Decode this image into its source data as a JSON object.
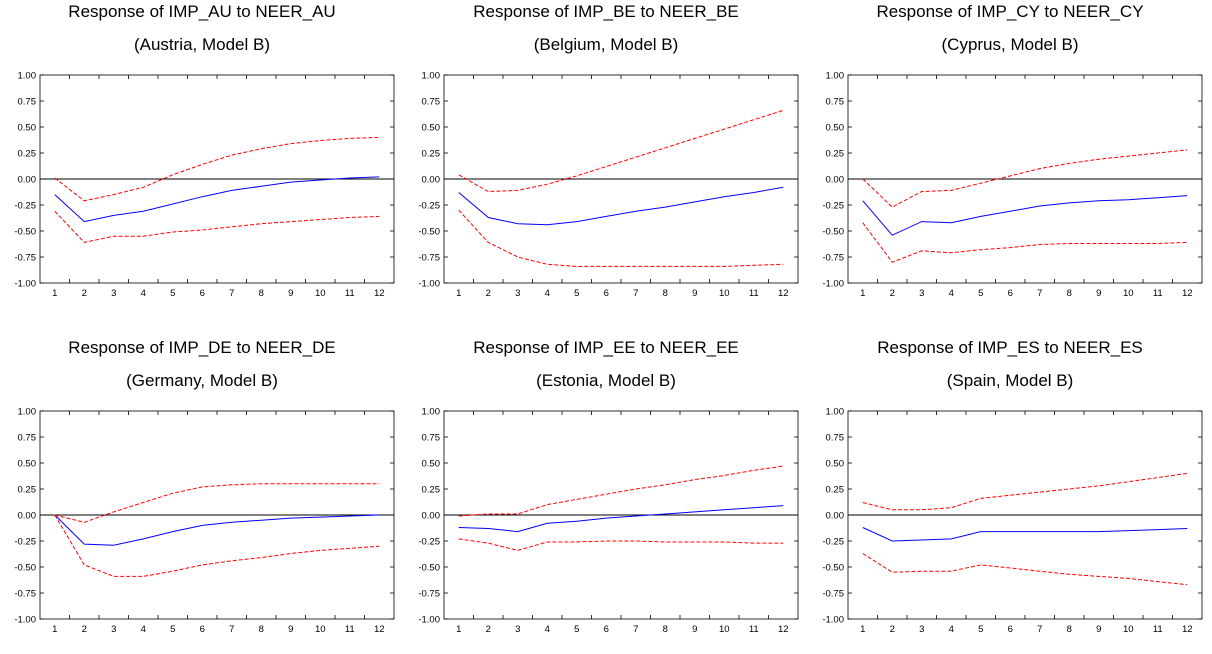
{
  "chart_data": [
    {
      "type": "line",
      "title": "Response of IMP_AU to NEER_AU",
      "subtitle": "(Austria, Model B)",
      "x": [
        1,
        2,
        3,
        4,
        5,
        6,
        7,
        8,
        9,
        10,
        11,
        12
      ],
      "ylim": [
        -1.0,
        1.0
      ],
      "yticks": [
        "1.00",
        "0.75",
        "0.50",
        "0.25",
        "0.00",
        "-0.25",
        "-0.50",
        "-0.75",
        "-1.00"
      ],
      "xticks": [
        "1",
        "2",
        "3",
        "4",
        "5",
        "6",
        "7",
        "8",
        "9",
        "10",
        "11",
        "12"
      ],
      "series": [
        {
          "role": "response",
          "color": "#0000ff",
          "dashed": false,
          "values": [
            -0.15,
            -0.41,
            -0.35,
            -0.31,
            -0.24,
            -0.17,
            -0.11,
            -0.07,
            -0.03,
            -0.01,
            0.01,
            0.02
          ]
        },
        {
          "role": "upper-band",
          "color": "#ff0000",
          "dashed": true,
          "values": [
            0.01,
            -0.21,
            -0.15,
            -0.08,
            0.04,
            0.14,
            0.23,
            0.29,
            0.34,
            0.37,
            0.39,
            0.4
          ]
        },
        {
          "role": "lower-band",
          "color": "#ff0000",
          "dashed": true,
          "values": [
            -0.31,
            -0.61,
            -0.55,
            -0.55,
            -0.51,
            -0.49,
            -0.46,
            -0.43,
            -0.41,
            -0.39,
            -0.37,
            -0.36
          ]
        }
      ]
    },
    {
      "type": "line",
      "title": "Response of IMP_BE to NEER_BE",
      "subtitle": "(Belgium, Model B)",
      "x": [
        1,
        2,
        3,
        4,
        5,
        6,
        7,
        8,
        9,
        10,
        11,
        12
      ],
      "ylim": [
        -1.0,
        1.0
      ],
      "yticks": [
        "1.00",
        "0.75",
        "0.50",
        "0.25",
        "0.00",
        "-0.25",
        "-0.50",
        "-0.75",
        "-1.00"
      ],
      "xticks": [
        "1",
        "2",
        "3",
        "4",
        "5",
        "6",
        "7",
        "8",
        "9",
        "10",
        "11",
        "12"
      ],
      "series": [
        {
          "role": "response",
          "color": "#0000ff",
          "dashed": false,
          "values": [
            -0.13,
            -0.37,
            -0.43,
            -0.44,
            -0.41,
            -0.36,
            -0.31,
            -0.27,
            -0.22,
            -0.17,
            -0.13,
            -0.08
          ]
        },
        {
          "role": "upper-band",
          "color": "#ff0000",
          "dashed": true,
          "values": [
            0.04,
            -0.12,
            -0.11,
            -0.05,
            0.03,
            0.12,
            0.21,
            0.3,
            0.39,
            0.48,
            0.57,
            0.66
          ]
        },
        {
          "role": "lower-band",
          "color": "#ff0000",
          "dashed": true,
          "values": [
            -0.3,
            -0.61,
            -0.75,
            -0.82,
            -0.84,
            -0.84,
            -0.84,
            -0.84,
            -0.84,
            -0.84,
            -0.83,
            -0.82
          ]
        }
      ]
    },
    {
      "type": "line",
      "title": "Response of IMP_CY to NEER_CY",
      "subtitle": "(Cyprus, Model B)",
      "x": [
        1,
        2,
        3,
        4,
        5,
        6,
        7,
        8,
        9,
        10,
        11,
        12
      ],
      "ylim": [
        -1.0,
        1.0
      ],
      "yticks": [
        "1.00",
        "0.75",
        "0.50",
        "0.25",
        "0.00",
        "-0.25",
        "-0.50",
        "-0.75",
        "-1.00"
      ],
      "xticks": [
        "1",
        "2",
        "3",
        "4",
        "5",
        "6",
        "7",
        "8",
        "9",
        "10",
        "11",
        "12"
      ],
      "series": [
        {
          "role": "response",
          "color": "#0000ff",
          "dashed": false,
          "values": [
            -0.21,
            -0.54,
            -0.41,
            -0.42,
            -0.36,
            -0.31,
            -0.26,
            -0.23,
            -0.21,
            -0.2,
            -0.18,
            -0.16
          ]
        },
        {
          "role": "upper-band",
          "color": "#ff0000",
          "dashed": true,
          "values": [
            0.0,
            -0.27,
            -0.12,
            -0.11,
            -0.04,
            0.03,
            0.1,
            0.15,
            0.19,
            0.22,
            0.25,
            0.28
          ]
        },
        {
          "role": "lower-band",
          "color": "#ff0000",
          "dashed": true,
          "values": [
            -0.42,
            -0.8,
            -0.69,
            -0.71,
            -0.68,
            -0.66,
            -0.63,
            -0.62,
            -0.62,
            -0.62,
            -0.62,
            -0.61
          ]
        }
      ]
    },
    {
      "type": "line",
      "title": "Response of IMP_DE to NEER_DE",
      "subtitle": "(Germany, Model B)",
      "x": [
        1,
        2,
        3,
        4,
        5,
        6,
        7,
        8,
        9,
        10,
        11,
        12
      ],
      "ylim": [
        -1.0,
        1.0
      ],
      "yticks": [
        "1.00",
        "0.75",
        "0.50",
        "0.25",
        "0.00",
        "-0.25",
        "-0.50",
        "-0.75",
        "-1.00"
      ],
      "xticks": [
        "1",
        "2",
        "3",
        "4",
        "5",
        "6",
        "7",
        "8",
        "9",
        "10",
        "11",
        "12"
      ],
      "series": [
        {
          "role": "response",
          "color": "#0000ff",
          "dashed": false,
          "values": [
            0.0,
            -0.28,
            -0.29,
            -0.23,
            -0.16,
            -0.1,
            -0.07,
            -0.05,
            -0.03,
            -0.02,
            -0.01,
            0.0
          ]
        },
        {
          "role": "upper-band",
          "color": "#ff0000",
          "dashed": true,
          "values": [
            0.0,
            -0.07,
            0.03,
            0.12,
            0.21,
            0.27,
            0.29,
            0.3,
            0.3,
            0.3,
            0.3,
            0.3
          ]
        },
        {
          "role": "lower-band",
          "color": "#ff0000",
          "dashed": true,
          "values": [
            0.0,
            -0.48,
            -0.59,
            -0.59,
            -0.54,
            -0.48,
            -0.44,
            -0.41,
            -0.37,
            -0.34,
            -0.32,
            -0.3
          ]
        }
      ]
    },
    {
      "type": "line",
      "title": "Response of IMP_EE to NEER_EE",
      "subtitle": "(Estonia, Model B)",
      "x": [
        1,
        2,
        3,
        4,
        5,
        6,
        7,
        8,
        9,
        10,
        11,
        12
      ],
      "ylim": [
        -1.0,
        1.0
      ],
      "yticks": [
        "1.00",
        "0.75",
        "0.50",
        "0.25",
        "0.00",
        "-0.25",
        "-0.50",
        "-0.75",
        "-1.00"
      ],
      "xticks": [
        "1",
        "2",
        "3",
        "4",
        "5",
        "6",
        "7",
        "8",
        "9",
        "10",
        "11",
        "12"
      ],
      "series": [
        {
          "role": "response",
          "color": "#0000ff",
          "dashed": false,
          "values": [
            -0.12,
            -0.13,
            -0.16,
            -0.08,
            -0.06,
            -0.03,
            -0.01,
            0.01,
            0.03,
            0.05,
            0.07,
            0.09
          ]
        },
        {
          "role": "upper-band",
          "color": "#ff0000",
          "dashed": true,
          "values": [
            -0.01,
            0.01,
            0.01,
            0.1,
            0.15,
            0.2,
            0.25,
            0.29,
            0.34,
            0.38,
            0.43,
            0.47
          ]
        },
        {
          "role": "lower-band",
          "color": "#ff0000",
          "dashed": true,
          "values": [
            -0.23,
            -0.27,
            -0.34,
            -0.26,
            -0.26,
            -0.25,
            -0.25,
            -0.26,
            -0.26,
            -0.26,
            -0.27,
            -0.27
          ]
        }
      ]
    },
    {
      "type": "line",
      "title": "Response of IMP_ES to NEER_ES",
      "subtitle": "(Spain, Model B)",
      "x": [
        1,
        2,
        3,
        4,
        5,
        6,
        7,
        8,
        9,
        10,
        11,
        12
      ],
      "ylim": [
        -1.0,
        1.0
      ],
      "yticks": [
        "1.00",
        "0.75",
        "0.50",
        "0.25",
        "0.00",
        "-0.25",
        "-0.50",
        "-0.75",
        "-1.00"
      ],
      "xticks": [
        "1",
        "2",
        "3",
        "4",
        "5",
        "6",
        "7",
        "8",
        "9",
        "10",
        "11",
        "12"
      ],
      "series": [
        {
          "role": "response",
          "color": "#0000ff",
          "dashed": false,
          "values": [
            -0.12,
            -0.25,
            -0.24,
            -0.23,
            -0.16,
            -0.16,
            -0.16,
            -0.16,
            -0.16,
            -0.15,
            -0.14,
            -0.13
          ]
        },
        {
          "role": "upper-band",
          "color": "#ff0000",
          "dashed": true,
          "values": [
            0.12,
            0.05,
            0.05,
            0.07,
            0.16,
            0.19,
            0.22,
            0.25,
            0.28,
            0.32,
            0.36,
            0.4
          ]
        },
        {
          "role": "lower-band",
          "color": "#ff0000",
          "dashed": true,
          "values": [
            -0.37,
            -0.55,
            -0.54,
            -0.54,
            -0.48,
            -0.51,
            -0.54,
            -0.57,
            -0.59,
            -0.61,
            -0.64,
            -0.67
          ]
        }
      ]
    }
  ]
}
